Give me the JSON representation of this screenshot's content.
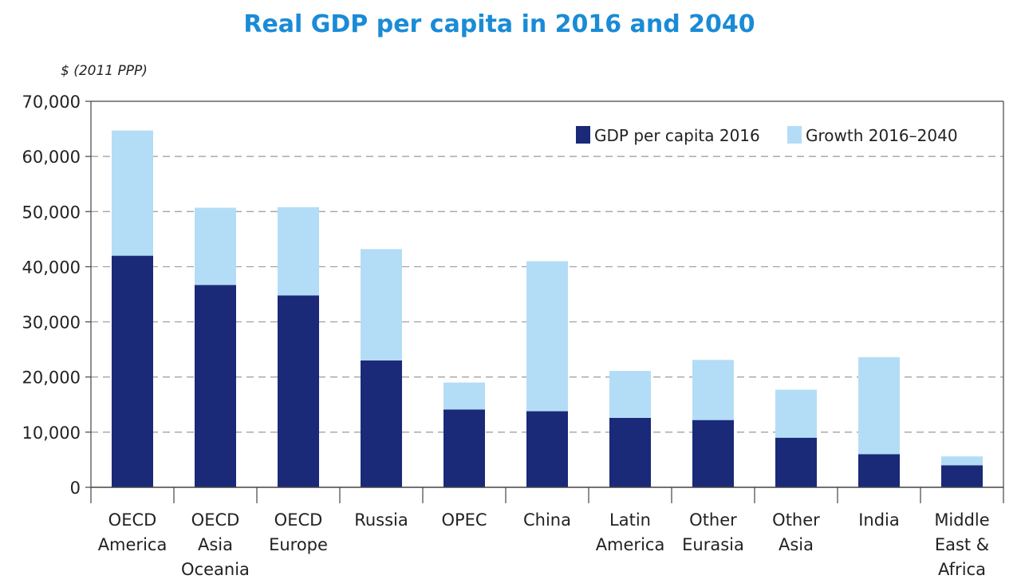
{
  "colors": {
    "base": "#1a2a78",
    "growth": "#b3ddf6",
    "title": "#1a8bd6",
    "grid": "#9a9a9a"
  },
  "chart_data": {
    "type": "bar",
    "stacked": true,
    "title": "Real GDP per capita in 2016 and 2040",
    "ylabel": "$ (2011 PPP)",
    "ylim": [
      0,
      70000
    ],
    "yticks": [
      0,
      10000,
      20000,
      30000,
      40000,
      50000,
      60000,
      70000
    ],
    "ytick_labels": [
      "0",
      "10,000",
      "20,000",
      "30,000",
      "40,000",
      "50,000",
      "60,000",
      "70,000"
    ],
    "grid": "horizontal-dashed",
    "legend_position": "top-right",
    "categories": [
      [
        "OECD",
        "America"
      ],
      [
        "OECD",
        "Asia",
        "Oceania"
      ],
      [
        "OECD",
        "Europe"
      ],
      [
        "Russia"
      ],
      [
        "OPEC"
      ],
      [
        "China"
      ],
      [
        "Latin",
        "America"
      ],
      [
        "Other",
        "Eurasia"
      ],
      [
        "Other",
        "Asia"
      ],
      [
        "India"
      ],
      [
        "Middle",
        "East &",
        "Africa"
      ]
    ],
    "series": [
      {
        "name": "GDP per capita 2016",
        "color": "#1a2a78",
        "values": [
          42000,
          36700,
          34800,
          23000,
          14100,
          13800,
          12600,
          12200,
          9000,
          6000,
          4000
        ]
      },
      {
        "name": "Growth 2016–2040",
        "color": "#b3ddf6",
        "values": [
          22700,
          14000,
          16000,
          20200,
          4900,
          27200,
          8500,
          10900,
          8700,
          17600,
          1600
        ]
      }
    ]
  }
}
